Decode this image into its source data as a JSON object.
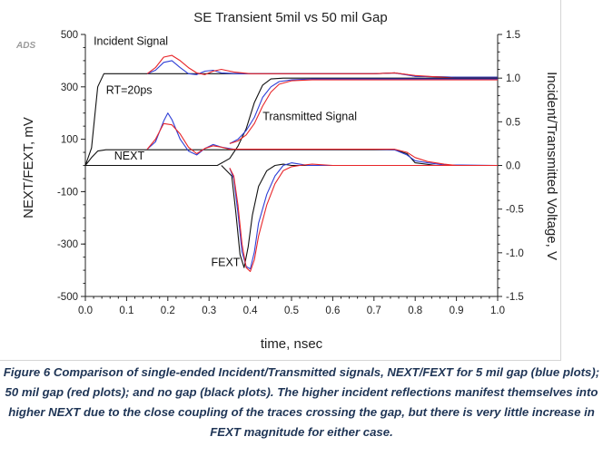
{
  "chart_data": {
    "type": "line",
    "title": "SE Transient 5mil vs 50 mil Gap",
    "badge": "ADS",
    "xlabel": "time, nsec",
    "ylabel_left": "NEXT/FEXT, mV",
    "ylabel_right": "Incident/Transmitted Voltage, V",
    "xlim": [
      0,
      1.0
    ],
    "ylim_left": [
      -500,
      500
    ],
    "ylim_right": [
      -1.5,
      1.5
    ],
    "x_ticks": [
      "0.0",
      "0.1",
      "0.2",
      "0.3",
      "0.4",
      "0.5",
      "0.6",
      "0.7",
      "0.8",
      "0.9",
      "1.0"
    ],
    "y_left_ticks": [
      "500",
      "300",
      "100",
      "-100",
      "-300",
      "-500"
    ],
    "y_right_ticks": [
      "1.5",
      "1.0",
      "0.5",
      "0.0",
      "-0.5",
      "-1.0",
      "-1.5"
    ],
    "colors": {
      "five_mil_gap": "#2f3fd6",
      "fifty_mil_gap": "#e8262a",
      "no_gap": "#111111",
      "axis": "#222222"
    },
    "annotations": [
      {
        "text": "Incident Signal",
        "at_x": 0.02,
        "at_y_right": 1.38
      },
      {
        "text": "RT=20ps",
        "at_x": 0.05,
        "at_y_right": 0.82
      },
      {
        "text": "Transmitted Signal",
        "at_x": 0.43,
        "at_y_right": 0.52
      },
      {
        "text": "NEXT",
        "at_x": 0.07,
        "at_y_right": 0.07
      },
      {
        "text": "FEXT",
        "at_x": 0.305,
        "at_y_right": -1.15
      }
    ],
    "series": [
      {
        "key": "incident_black",
        "axis": "right",
        "color": "no_gap",
        "x": [
          0,
          0.015,
          0.03,
          0.045,
          0.1,
          0.2,
          0.3,
          0.4,
          0.5,
          0.6,
          0.7,
          0.75,
          0.78,
          0.8,
          0.9,
          1.0
        ],
        "y": [
          0,
          0.2,
          0.9,
          1.05,
          1.05,
          1.05,
          1.05,
          1.05,
          1.05,
          1.05,
          1.05,
          1.06,
          1.04,
          1.02,
          1.01,
          1.01
        ]
      },
      {
        "key": "incident_blue",
        "axis": "right",
        "color": "five_mil_gap",
        "x": [
          0.15,
          0.17,
          0.19,
          0.21,
          0.23,
          0.25,
          0.27,
          0.29,
          0.31,
          0.33,
          0.37,
          0.45,
          0.6,
          0.7,
          0.75,
          0.8,
          0.9,
          1.0
        ],
        "y": [
          1.05,
          1.09,
          1.18,
          1.2,
          1.12,
          1.05,
          1.04,
          1.08,
          1.09,
          1.06,
          1.05,
          1.05,
          1.05,
          1.05,
          1.06,
          1.02,
          1.01,
          1.01
        ]
      },
      {
        "key": "incident_red",
        "axis": "right",
        "color": "fifty_mil_gap",
        "x": [
          0.15,
          0.17,
          0.19,
          0.21,
          0.23,
          0.25,
          0.27,
          0.29,
          0.31,
          0.33,
          0.36,
          0.4,
          0.45,
          0.6,
          0.7,
          0.75,
          0.8,
          0.9,
          1.0
        ],
        "y": [
          1.05,
          1.12,
          1.24,
          1.26,
          1.2,
          1.12,
          1.06,
          1.04,
          1.08,
          1.1,
          1.07,
          1.05,
          1.05,
          1.05,
          1.05,
          1.06,
          1.03,
          1.0,
          1.0
        ]
      },
      {
        "key": "transmitted_black",
        "axis": "right",
        "color": "no_gap",
        "x": [
          0,
          0.32,
          0.35,
          0.37,
          0.39,
          0.41,
          0.43,
          0.45,
          0.48,
          0.55,
          0.7,
          1.0
        ],
        "y": [
          0,
          0,
          0.08,
          0.22,
          0.42,
          0.72,
          0.92,
          0.99,
          1.0,
          1.0,
          1.0,
          1.0
        ]
      },
      {
        "key": "transmitted_blue",
        "axis": "right",
        "color": "five_mil_gap",
        "x": [
          0.35,
          0.37,
          0.39,
          0.41,
          0.43,
          0.45,
          0.47,
          0.5,
          0.55,
          0.7,
          1.0
        ],
        "y": [
          0.25,
          0.3,
          0.4,
          0.55,
          0.78,
          0.9,
          0.96,
          0.98,
          0.99,
          0.99,
          0.99
        ]
      },
      {
        "key": "transmitted_red",
        "axis": "right",
        "color": "fifty_mil_gap",
        "x": [
          0.35,
          0.37,
          0.39,
          0.41,
          0.43,
          0.45,
          0.47,
          0.5,
          0.55,
          0.7,
          1.0
        ],
        "y": [
          0.25,
          0.28,
          0.35,
          0.48,
          0.68,
          0.84,
          0.93,
          0.97,
          0.98,
          0.98,
          0.98
        ]
      },
      {
        "key": "next_black",
        "axis": "left",
        "color": "no_gap",
        "x": [
          0,
          0.015,
          0.03,
          0.05,
          0.1,
          0.15,
          0.2,
          0.3,
          0.4,
          0.5,
          0.6,
          0.7,
          0.75,
          0.78,
          0.8,
          0.85,
          1.0
        ],
        "y": [
          0,
          30,
          55,
          60,
          60,
          60,
          60,
          60,
          60,
          60,
          60,
          60,
          60,
          45,
          10,
          0,
          0
        ]
      },
      {
        "key": "next_blue",
        "axis": "left",
        "color": "five_mil_gap",
        "x": [
          0.15,
          0.17,
          0.19,
          0.2,
          0.21,
          0.23,
          0.25,
          0.27,
          0.29,
          0.31,
          0.33,
          0.36,
          0.4,
          0.5,
          0.6,
          0.7,
          0.75,
          0.78,
          0.8,
          0.83,
          0.87,
          1.0
        ],
        "y": [
          62,
          90,
          170,
          200,
          175,
          100,
          55,
          40,
          65,
          80,
          70,
          62,
          62,
          62,
          62,
          62,
          60,
          40,
          18,
          10,
          2,
          0
        ]
      },
      {
        "key": "next_red",
        "axis": "left",
        "color": "fifty_mil_gap",
        "x": [
          0.15,
          0.17,
          0.19,
          0.21,
          0.23,
          0.25,
          0.27,
          0.29,
          0.31,
          0.33,
          0.35,
          0.4,
          0.5,
          0.6,
          0.7,
          0.75,
          0.78,
          0.8,
          0.83,
          0.87,
          0.9,
          1.0
        ],
        "y": [
          62,
          100,
          160,
          155,
          120,
          70,
          45,
          65,
          75,
          70,
          62,
          62,
          62,
          62,
          62,
          62,
          50,
          30,
          15,
          5,
          0,
          0
        ]
      },
      {
        "key": "fext_black",
        "axis": "left",
        "color": "no_gap",
        "x": [
          0.33,
          0.355,
          0.365,
          0.375,
          0.385,
          0.395,
          0.405,
          0.42,
          0.44,
          0.46,
          0.48,
          0.5,
          0.55,
          0.6,
          1.0
        ],
        "y": [
          0,
          -40,
          -180,
          -340,
          -390,
          -310,
          -190,
          -80,
          -20,
          0,
          5,
          0,
          0,
          0,
          0
        ]
      },
      {
        "key": "fext_blue",
        "axis": "left",
        "color": "five_mil_gap",
        "x": [
          0.35,
          0.36,
          0.37,
          0.38,
          0.39,
          0.4,
          0.41,
          0.42,
          0.44,
          0.46,
          0.48,
          0.5,
          0.52,
          0.54,
          0.6,
          0.7,
          1.0
        ],
        "y": [
          -10,
          -50,
          -180,
          -330,
          -385,
          -395,
          -330,
          -220,
          -110,
          -40,
          0,
          10,
          5,
          0,
          0,
          0,
          0
        ]
      },
      {
        "key": "fext_red",
        "axis": "left",
        "color": "fifty_mil_gap",
        "x": [
          0.35,
          0.36,
          0.37,
          0.38,
          0.39,
          0.4,
          0.41,
          0.42,
          0.44,
          0.46,
          0.48,
          0.5,
          0.52,
          0.55,
          0.6,
          0.7,
          1.0
        ],
        "y": [
          -10,
          -40,
          -150,
          -300,
          -390,
          -405,
          -360,
          -270,
          -150,
          -70,
          -20,
          -5,
          0,
          5,
          0,
          0,
          0
        ]
      }
    ]
  },
  "caption": "Figure 6 Comparison of single-ended Incident/Transmitted signals, NEXT/FEXT for 5 mil gap (blue plots); 50 mil gap (red plots); and no gap (black plots). The higher incident reflections manifest themselves into higher NEXT due to the close coupling of the traces crossing the gap, but there is very little increase in FEXT magnitude for either case."
}
